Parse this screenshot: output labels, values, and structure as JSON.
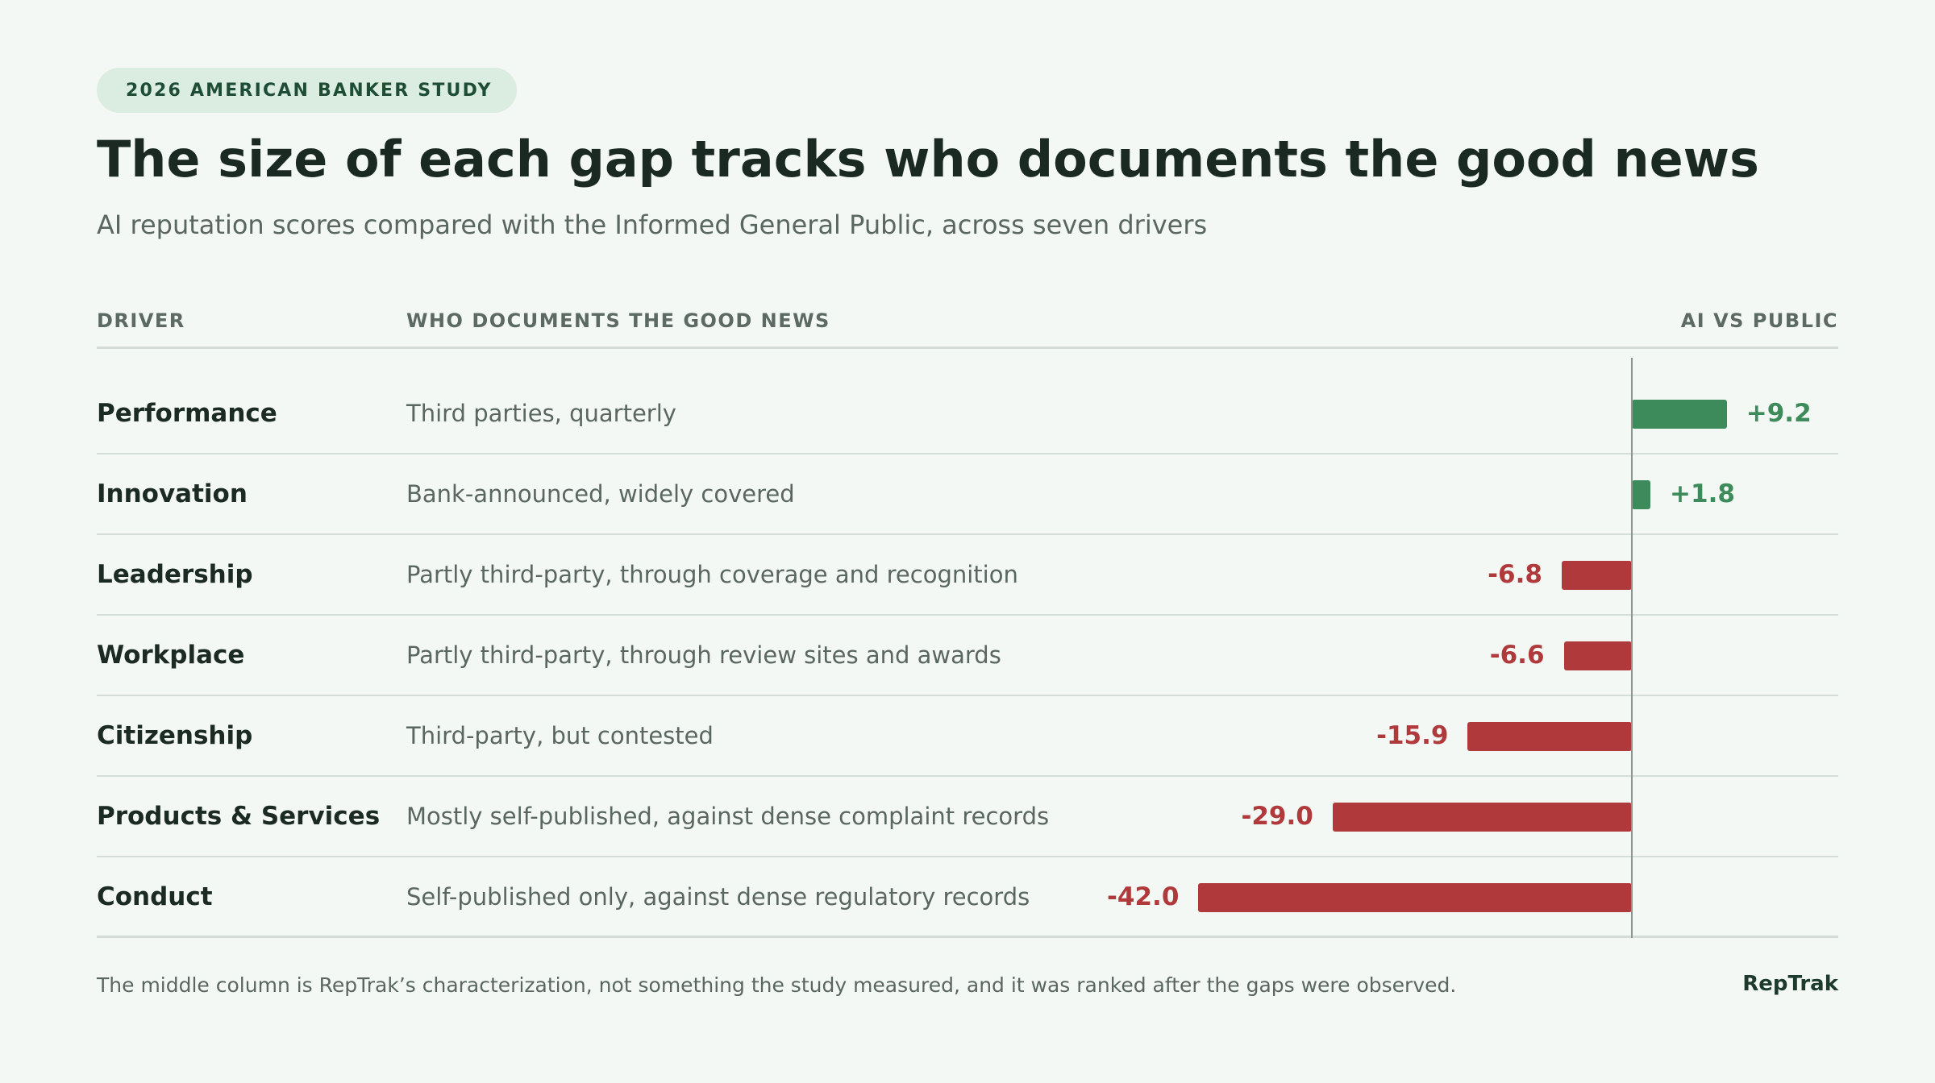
{
  "badge": "2026 AMERICAN BANKER STUDY",
  "title": "The size of each gap tracks who documents the good news",
  "subtitle": "AI reputation scores compared with the Informed General Public, across seven drivers",
  "columns": {
    "driver": "DRIVER",
    "who": "WHO DOCUMENTS THE GOOD NEWS",
    "value": "AI VS PUBLIC"
  },
  "footnote": "The middle column is RepTrak’s characterization, not something the study measured, and it was ranked after the gaps were observed.",
  "brand": "RepTrak",
  "colors": {
    "positive": "#3d8b5a",
    "negative": "#b0393b"
  },
  "chart_data": {
    "type": "bar",
    "orientation": "horizontal",
    "categories": [
      "Performance",
      "Innovation",
      "Leadership",
      "Workplace",
      "Citizenship",
      "Products & Services",
      "Conduct"
    ],
    "descriptions": [
      "Third parties, quarterly",
      "Bank-announced, widely covered",
      "Partly third-party, through coverage and recognition",
      "Partly third-party, through review sites and awards",
      "Third-party, but contested",
      "Mostly self-published, against dense complaint records",
      "Self-published only, against dense regulatory records"
    ],
    "values": [
      9.2,
      1.8,
      -6.8,
      -6.6,
      -15.9,
      -29.0,
      -42.0
    ],
    "labels": [
      "+9.2",
      "+1.8",
      "-6.8",
      "-6.6",
      "-15.9",
      "-29.0",
      "-42.0"
    ],
    "baseline": 0
  }
}
